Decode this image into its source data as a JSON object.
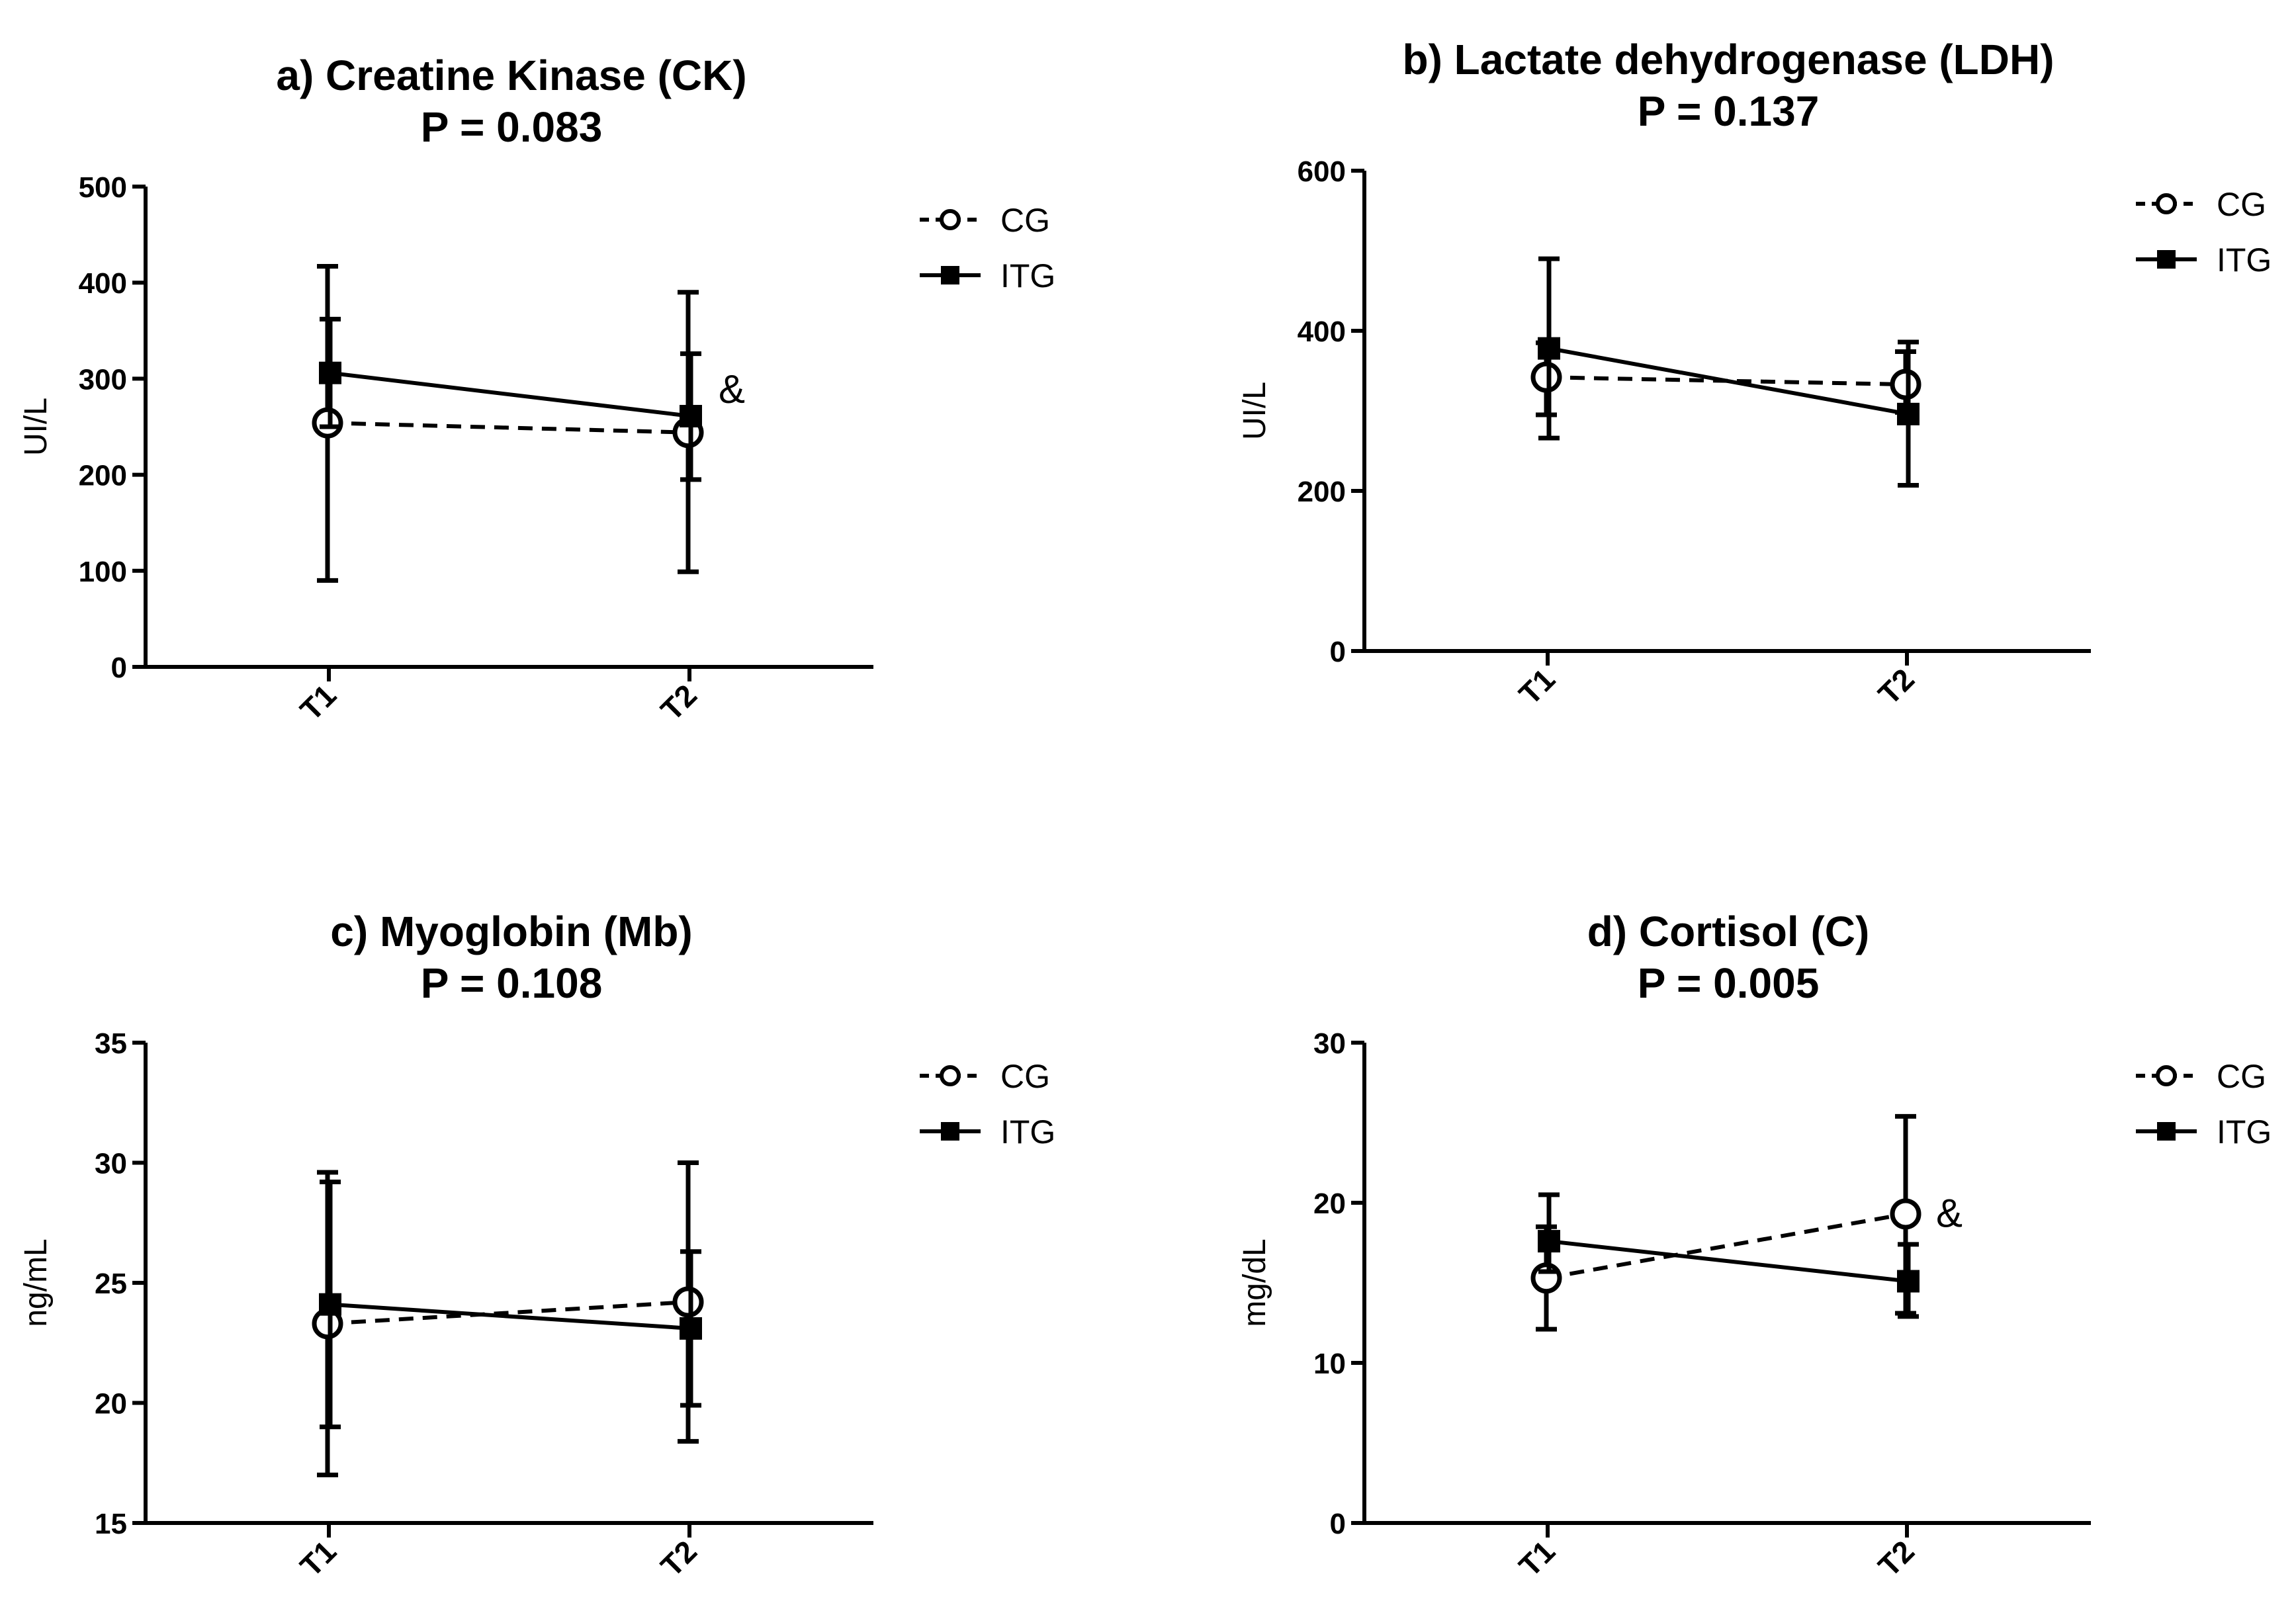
{
  "colors": {
    "ink": "#000000",
    "background": "#ffffff"
  },
  "chart_data": [
    {
      "type": "line",
      "title": "a) Creatine Kinase (CK)",
      "subtitle": "P = 0.083",
      "xlabel": "",
      "ylabel": "UI/L",
      "categories": [
        "T1",
        "T2"
      ],
      "ylim": [
        0,
        500
      ],
      "yticks": [
        0,
        100,
        200,
        300,
        400,
        500
      ],
      "legend_position": "top-right",
      "series": [
        {
          "name": "CG",
          "marker": "open-circle",
          "line": "dashed",
          "values": [
            254,
            244
          ],
          "err_low": [
            90,
            99
          ],
          "err_high": [
            417,
            390
          ]
        },
        {
          "name": "ITG",
          "marker": "filled-square",
          "line": "solid",
          "values": [
            306,
            261
          ],
          "err_low": [
            250,
            195
          ],
          "err_high": [
            362,
            326
          ]
        }
      ],
      "annotations": [
        {
          "text": "&",
          "category": "T2",
          "value": 290
        }
      ]
    },
    {
      "type": "line",
      "title": "b) Lactate dehydrogenase (LDH)",
      "subtitle": "P = 0.137",
      "xlabel": "",
      "ylabel": "UI/L",
      "categories": [
        "T1",
        "T2"
      ],
      "ylim": [
        0,
        600
      ],
      "yticks": [
        0,
        200,
        400,
        600
      ],
      "legend_position": "top-right",
      "series": [
        {
          "name": "CG",
          "marker": "open-circle",
          "line": "dashed",
          "values": [
            342,
            333
          ],
          "err_low": [
            295,
            298
          ],
          "err_high": [
            385,
            374
          ]
        },
        {
          "name": "ITG",
          "marker": "filled-square",
          "line": "solid",
          "values": [
            378,
            296
          ],
          "err_low": [
            266,
            207
          ],
          "err_high": [
            490,
            386
          ]
        }
      ],
      "annotations": []
    },
    {
      "type": "line",
      "title": "c) Myoglobin (Mb)",
      "subtitle": "P = 0.108",
      "xlabel": "",
      "ylabel": "ng/mL",
      "categories": [
        "T1",
        "T2"
      ],
      "ylim": [
        15,
        35
      ],
      "yticks": [
        15,
        20,
        25,
        30,
        35
      ],
      "legend_position": "top-right",
      "series": [
        {
          "name": "CG",
          "marker": "open-circle",
          "line": "dashed",
          "values": [
            23.3,
            24.2
          ],
          "err_low": [
            17.0,
            18.4
          ],
          "err_high": [
            29.6,
            30.0
          ]
        },
        {
          "name": "ITG",
          "marker": "filled-square",
          "line": "solid",
          "values": [
            24.1,
            23.1
          ],
          "err_low": [
            19.0,
            19.9
          ],
          "err_high": [
            29.2,
            26.3
          ]
        }
      ],
      "annotations": []
    },
    {
      "type": "line",
      "title": "d) Cortisol (C)",
      "subtitle": "P = 0.005",
      "xlabel": "",
      "ylabel": "mg/dL",
      "categories": [
        "T1",
        "T2"
      ],
      "ylim": [
        0,
        30
      ],
      "yticks": [
        0,
        10,
        20,
        30
      ],
      "legend_position": "top-right",
      "series": [
        {
          "name": "CG",
          "marker": "open-circle",
          "line": "dashed",
          "values": [
            15.3,
            19.3
          ],
          "err_low": [
            12.1,
            13.1
          ],
          "err_high": [
            18.5,
            25.4
          ]
        },
        {
          "name": "ITG",
          "marker": "filled-square",
          "line": "solid",
          "values": [
            17.6,
            15.1
          ],
          "err_low": [
            15.7,
            12.9
          ],
          "err_high": [
            20.5,
            17.4
          ]
        }
      ],
      "annotations": [
        {
          "text": "&",
          "category": "T2",
          "value": 19.4
        }
      ]
    }
  ]
}
